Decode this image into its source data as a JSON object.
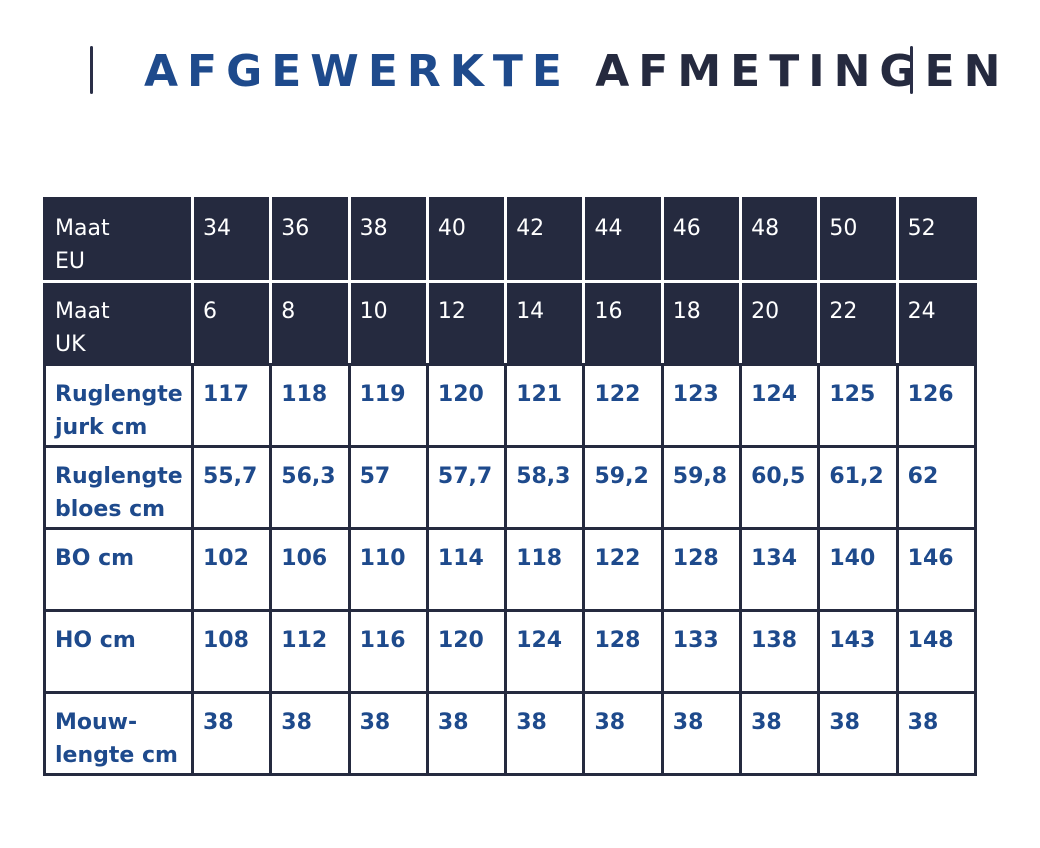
{
  "title": {
    "part1": "AFGEWERKTE",
    "part2": "AFMETINGEN"
  },
  "colors": {
    "navy": "#252a3f",
    "blue": "#1e4a8c",
    "white": "#ffffff"
  },
  "table": {
    "rows": [
      {
        "label": "Maat EU",
        "label_lines": [
          "Maat",
          "EU"
        ],
        "style": "dark",
        "values": [
          "34",
          "36",
          "38",
          "40",
          "42",
          "44",
          "46",
          "48",
          "50",
          "52"
        ]
      },
      {
        "label": "Maat UK",
        "label_lines": [
          "Maat",
          "UK"
        ],
        "style": "dark",
        "values": [
          "6",
          "8",
          "10",
          "12",
          "14",
          "16",
          "18",
          "20",
          "22",
          "24"
        ]
      },
      {
        "label": "Ruglengte jurk cm",
        "label_lines": [
          "Ruglengte",
          "jurk cm"
        ],
        "style": "light",
        "values": [
          "117",
          "118",
          "119",
          "120",
          "121",
          "122",
          "123",
          "124",
          "125",
          "126"
        ]
      },
      {
        "label": "Ruglengte bloes cm",
        "label_lines": [
          "Ruglengte",
          "bloes cm"
        ],
        "style": "light",
        "values": [
          "55,7",
          "56,3",
          "57",
          "57,7",
          "58,3",
          "59,2",
          "59,8",
          "60,5",
          "61,2",
          "62"
        ]
      },
      {
        "label": "BO cm",
        "label_lines": [
          "BO cm"
        ],
        "style": "light",
        "values": [
          "102",
          "106",
          "110",
          "114",
          "118",
          "122",
          "128",
          "134",
          "140",
          "146"
        ]
      },
      {
        "label": "HO cm",
        "label_lines": [
          "HO cm"
        ],
        "style": "light",
        "values": [
          "108",
          "112",
          "116",
          "120",
          "124",
          "128",
          "133",
          "138",
          "143",
          "148"
        ]
      },
      {
        "label": "Mouw-lengte cm",
        "label_lines": [
          "Mouw-",
          "lengte cm"
        ],
        "style": "light",
        "values": [
          "38",
          "38",
          "38",
          "38",
          "38",
          "38",
          "38",
          "38",
          "38",
          "38"
        ]
      }
    ]
  }
}
